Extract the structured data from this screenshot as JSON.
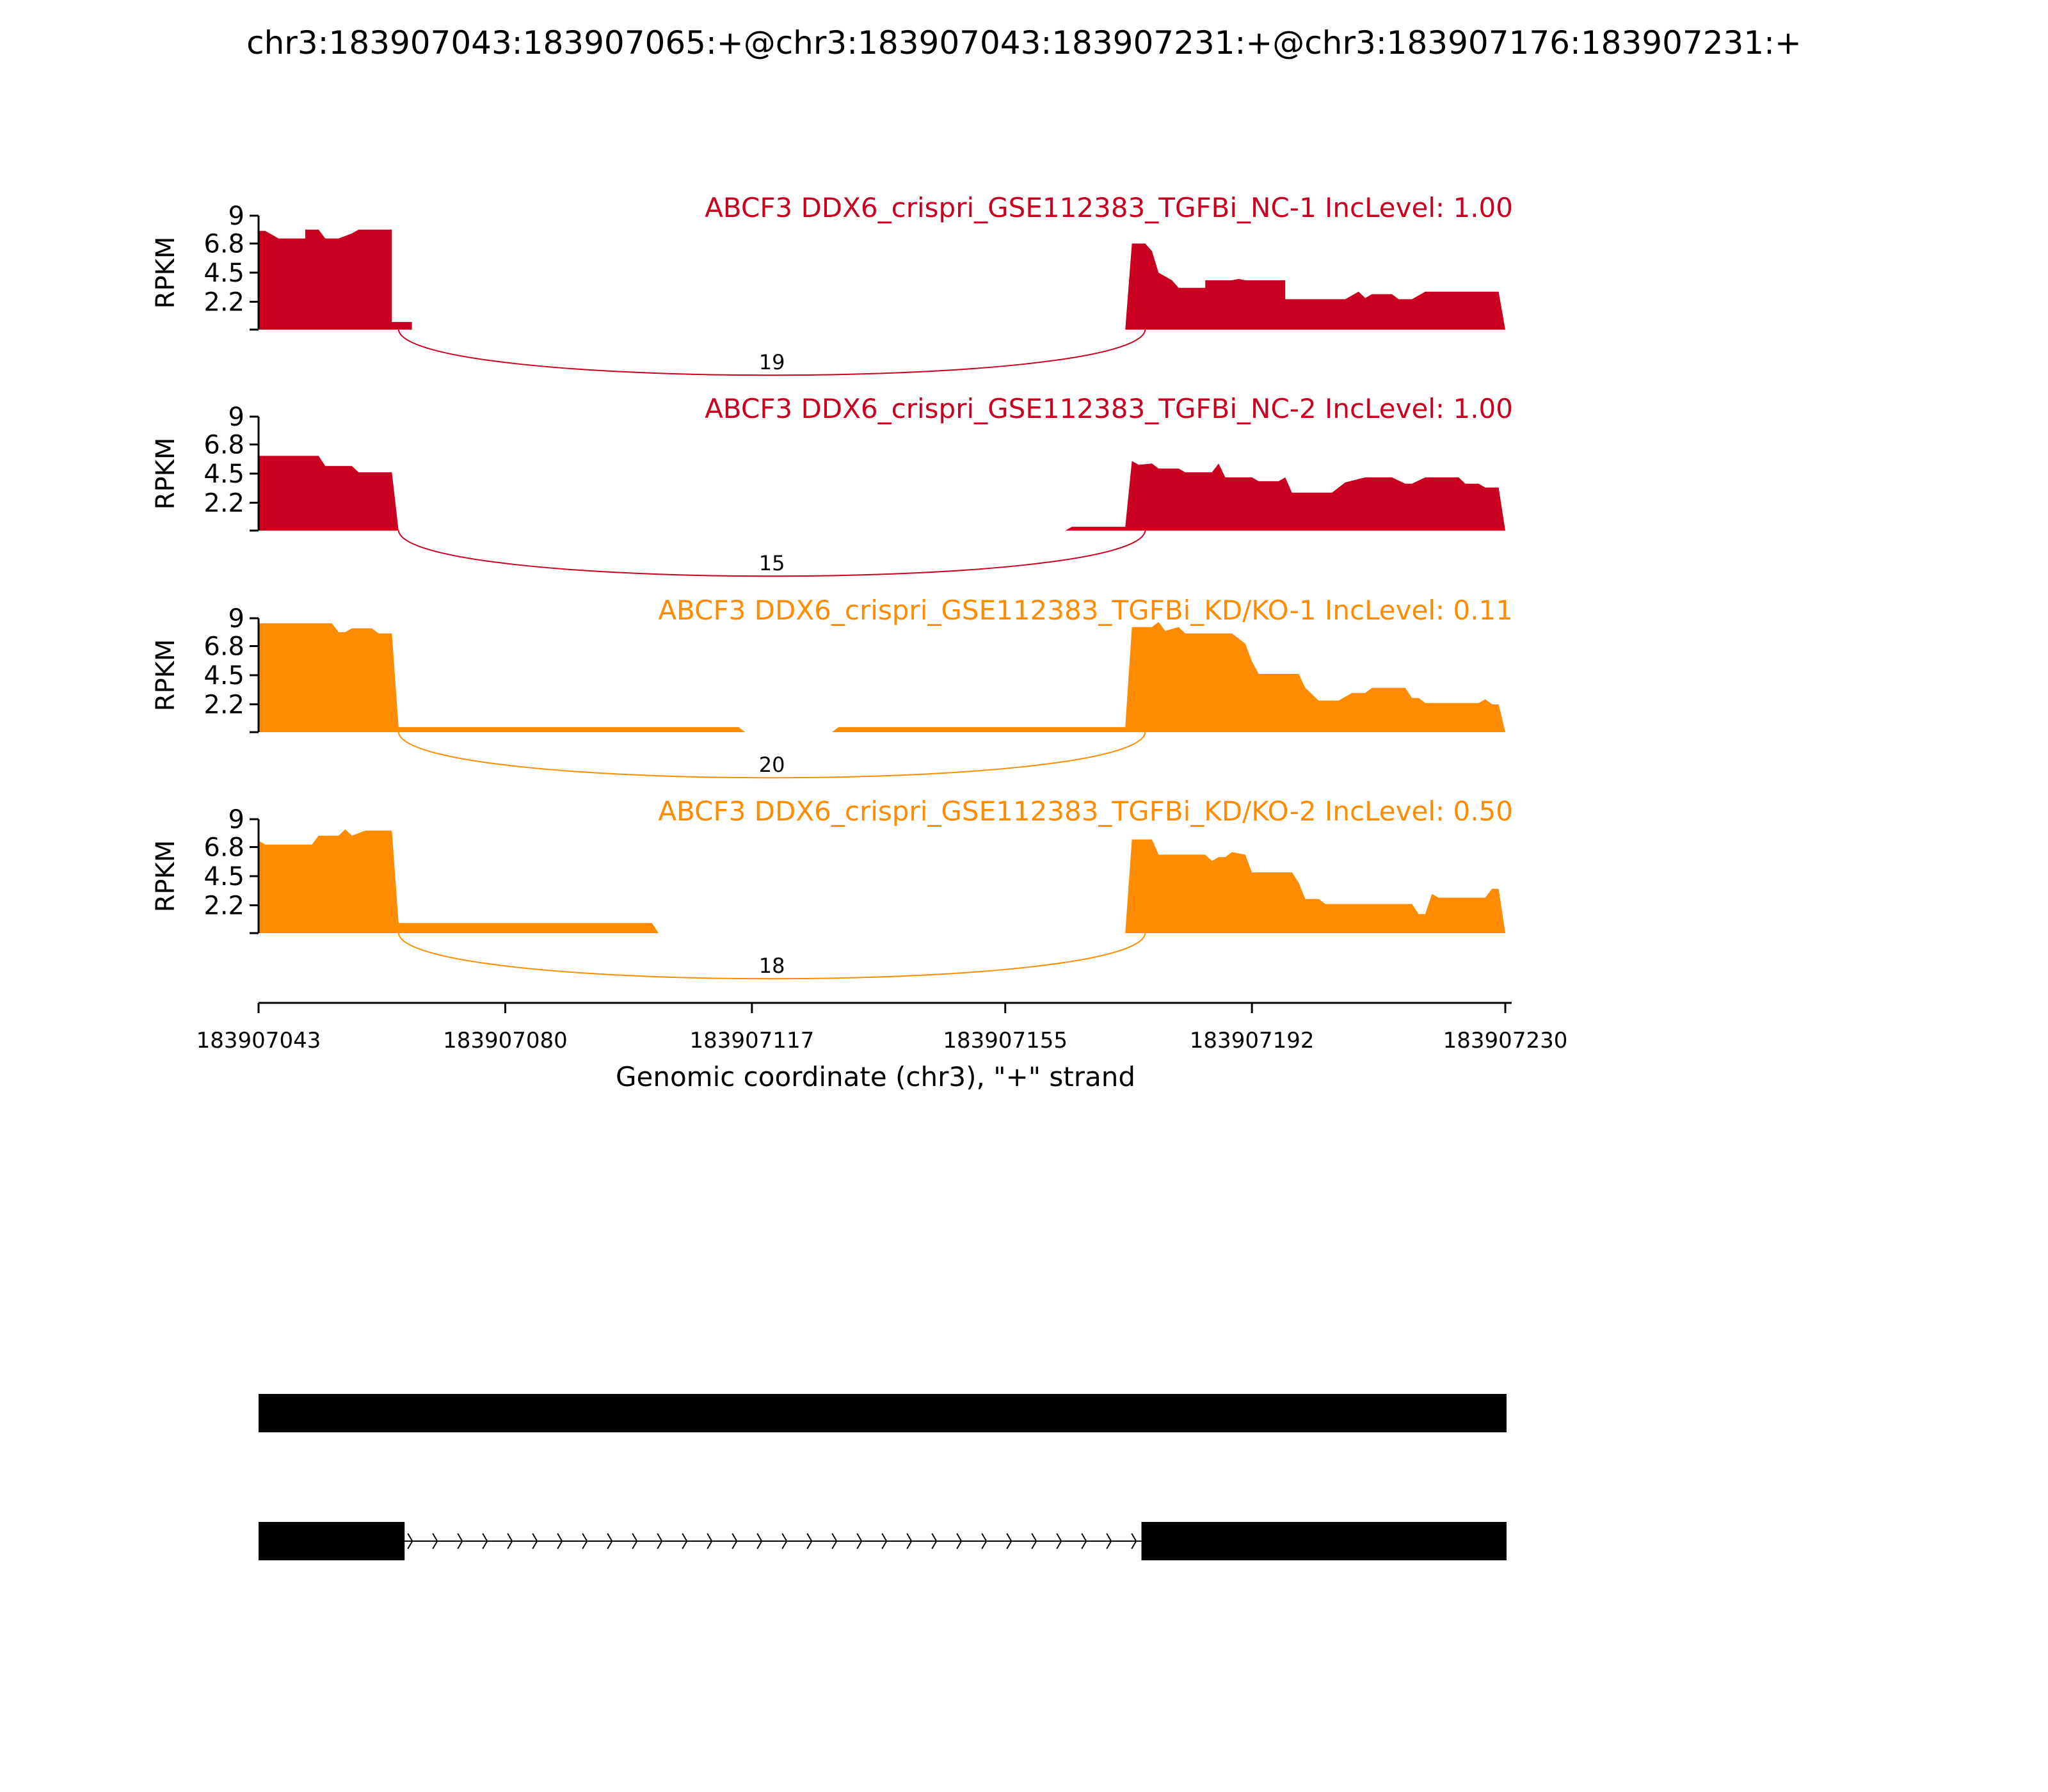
{
  "title": "chr3:183907043:183907065:+@chr3:183907043:183907231:+@chr3:183907176:183907231:+",
  "colors": {
    "nc": "#CA0020",
    "kd": "#FF8C00",
    "axis": "#000000",
    "gene": "#000000"
  },
  "chart_data": {
    "type": "area",
    "chart_kind": "sashimi",
    "xlabel": "Genomic coordinate (chr3), \"+\" strand",
    "xlim": [
      183907043,
      183907230
    ],
    "x_ticks": [
      183907043,
      183907080,
      183907117,
      183907155,
      183907192,
      183907230
    ],
    "x_tick_labels": [
      "183907043",
      "183907080",
      "183907117",
      "183907155",
      "183907192",
      "183907230"
    ],
    "ylabel": "RPKM",
    "ylim": [
      0,
      9
    ],
    "y_ticks": [
      2.2,
      4.5,
      6.8,
      9
    ],
    "y_tick_labels": [
      "2.2",
      "4.5",
      "6.8",
      "9"
    ],
    "tracks": [
      {
        "label": "ABCF3 DDX6_crispri_GSE112383_TGFBi_NC-1 IncLevel: 1.00",
        "color_key": "nc",
        "junctions": [
          {
            "start": 183907064,
            "end": 183907176,
            "count": "19"
          }
        ],
        "coverage": [
          [
            183907043,
            0
          ],
          [
            183907043,
            7.8
          ],
          [
            183907044,
            7.8
          ],
          [
            183907046,
            7.2
          ],
          [
            183907050,
            7.2
          ],
          [
            183907050,
            7.9
          ],
          [
            183907052,
            7.9
          ],
          [
            183907053,
            7.2
          ],
          [
            183907055,
            7.2
          ],
          [
            183907057,
            7.6
          ],
          [
            183907058,
            7.9
          ],
          [
            183907063,
            7.9
          ],
          [
            183907063,
            0.6
          ],
          [
            183907066,
            0.6
          ],
          [
            183907066,
            0
          ],
          [
            183907173,
            0
          ],
          [
            183907174,
            6.8
          ],
          [
            183907176,
            6.8
          ],
          [
            183907177,
            6.2
          ],
          [
            183907178,
            4.5
          ],
          [
            183907180,
            3.9
          ],
          [
            183907181,
            3.3
          ],
          [
            183907185,
            3.3
          ],
          [
            183907185,
            3.9
          ],
          [
            183907189,
            3.9
          ],
          [
            183907190,
            4.0
          ],
          [
            183907191,
            3.9
          ],
          [
            183907197,
            3.9
          ],
          [
            183907197,
            2.4
          ],
          [
            183907206,
            2.4
          ],
          [
            183907208,
            3.0
          ],
          [
            183907209,
            2.5
          ],
          [
            183907210,
            2.8
          ],
          [
            183907213,
            2.8
          ],
          [
            183907214,
            2.4
          ],
          [
            183907216,
            2.4
          ],
          [
            183907218,
            3.0
          ],
          [
            183907223,
            3.0
          ],
          [
            183907229,
            3.0
          ],
          [
            183907230,
            0
          ]
        ]
      },
      {
        "label": "ABCF3 DDX6_crispri_GSE112383_TGFBi_NC-2 IncLevel: 1.00",
        "color_key": "nc",
        "junctions": [
          {
            "start": 183907064,
            "end": 183907176,
            "count": "15"
          }
        ],
        "coverage": [
          [
            183907043,
            0
          ],
          [
            183907043,
            5.9
          ],
          [
            183907052,
            5.9
          ],
          [
            183907053,
            5.1
          ],
          [
            183907057,
            5.1
          ],
          [
            183907058,
            4.6
          ],
          [
            183907063,
            4.6
          ],
          [
            183907064,
            0
          ],
          [
            183907164,
            0
          ],
          [
            183907165,
            0.3
          ],
          [
            183907173,
            0.3
          ],
          [
            183907174,
            5.5
          ],
          [
            183907175,
            5.2
          ],
          [
            183907177,
            5.3
          ],
          [
            183907178,
            4.9
          ],
          [
            183907181,
            4.9
          ],
          [
            183907182,
            4.6
          ],
          [
            183907186,
            4.6
          ],
          [
            183907187,
            5.3
          ],
          [
            183907188,
            4.2
          ],
          [
            183907192,
            4.2
          ],
          [
            183907193,
            3.9
          ],
          [
            183907196,
            3.9
          ],
          [
            183907197,
            4.2
          ],
          [
            183907198,
            3.0
          ],
          [
            183907204,
            3.0
          ],
          [
            183907206,
            3.8
          ],
          [
            183907209,
            4.2
          ],
          [
            183907213,
            4.2
          ],
          [
            183907215,
            3.7
          ],
          [
            183907216,
            3.7
          ],
          [
            183907218,
            4.2
          ],
          [
            183907223,
            4.2
          ],
          [
            183907224,
            3.7
          ],
          [
            183907226,
            3.7
          ],
          [
            183907227,
            3.4
          ],
          [
            183907229,
            3.4
          ],
          [
            183907230,
            0
          ]
        ]
      },
      {
        "label": "ABCF3 DDX6_crispri_GSE112383_TGFBi_KD/KO-1 IncLevel: 0.11",
        "color_key": "kd",
        "junctions": [
          {
            "start": 183907064,
            "end": 183907176,
            "count": "20"
          }
        ],
        "coverage": [
          [
            183907043,
            0
          ],
          [
            183907043,
            8.6
          ],
          [
            183907054,
            8.6
          ],
          [
            183907055,
            7.9
          ],
          [
            183907056,
            7.9
          ],
          [
            183907057,
            8.2
          ],
          [
            183907060,
            8.2
          ],
          [
            183907061,
            7.8
          ],
          [
            183907063,
            7.8
          ],
          [
            183907064,
            0.4
          ],
          [
            183907115,
            0.4
          ],
          [
            183907116,
            0
          ],
          [
            183907129,
            0
          ],
          [
            183907130,
            0.4
          ],
          [
            183907173,
            0.4
          ],
          [
            183907174,
            8.3
          ],
          [
            183907177,
            8.3
          ],
          [
            183907178,
            8.7
          ],
          [
            183907179,
            8.0
          ],
          [
            183907181,
            8.3
          ],
          [
            183907182,
            7.8
          ],
          [
            183907189,
            7.8
          ],
          [
            183907191,
            7.0
          ],
          [
            183907192,
            5.6
          ],
          [
            183907193,
            4.6
          ],
          [
            183907199,
            4.6
          ],
          [
            183907200,
            3.5
          ],
          [
            183907202,
            2.5
          ],
          [
            183907205,
            2.5
          ],
          [
            183907207,
            3.1
          ],
          [
            183907209,
            3.1
          ],
          [
            183907210,
            3.5
          ],
          [
            183907215,
            3.5
          ],
          [
            183907216,
            2.7
          ],
          [
            183907217,
            2.7
          ],
          [
            183907218,
            2.3
          ],
          [
            183907226,
            2.3
          ],
          [
            183907227,
            2.6
          ],
          [
            183907228,
            2.2
          ],
          [
            183907229,
            2.2
          ],
          [
            183907230,
            0
          ]
        ]
      },
      {
        "label": "ABCF3 DDX6_crispri_GSE112383_TGFBi_KD/KO-2 IncLevel: 0.50",
        "color_key": "kd",
        "junctions": [
          {
            "start": 183907064,
            "end": 183907176,
            "count": "18"
          }
        ],
        "coverage": [
          [
            183907043,
            0
          ],
          [
            183907043,
            7.3
          ],
          [
            183907044,
            7.0
          ],
          [
            183907051,
            7.0
          ],
          [
            183907052,
            7.7
          ],
          [
            183907055,
            7.7
          ],
          [
            183907056,
            8.2
          ],
          [
            183907057,
            7.7
          ],
          [
            183907059,
            8.1
          ],
          [
            183907063,
            8.1
          ],
          [
            183907064,
            0.8
          ],
          [
            183907102,
            0.8
          ],
          [
            183907103,
            0
          ],
          [
            183907173,
            0
          ],
          [
            183907174,
            7.4
          ],
          [
            183907177,
            7.4
          ],
          [
            183907178,
            6.2
          ],
          [
            183907185,
            6.2
          ],
          [
            183907186,
            5.7
          ],
          [
            183907187,
            6.0
          ],
          [
            183907188,
            6.0
          ],
          [
            183907189,
            6.4
          ],
          [
            183907191,
            6.2
          ],
          [
            183907192,
            4.8
          ],
          [
            183907198,
            4.8
          ],
          [
            183907199,
            4.0
          ],
          [
            183907200,
            2.7
          ],
          [
            183907202,
            2.7
          ],
          [
            183907203,
            2.3
          ],
          [
            183907216,
            2.3
          ],
          [
            183907217,
            1.5
          ],
          [
            183907218,
            1.5
          ],
          [
            183907219,
            3.1
          ],
          [
            183907220,
            2.8
          ],
          [
            183907227,
            2.8
          ],
          [
            183907228,
            3.5
          ],
          [
            183907229,
            3.5
          ],
          [
            183907230,
            0
          ]
        ]
      }
    ],
    "gene_model": [
      {
        "exons": [
          [
            183907043,
            183907231
          ]
        ],
        "introns": []
      },
      {
        "exons": [
          [
            183907043,
            183907065
          ],
          [
            183907176,
            183907231
          ]
        ],
        "introns": [
          [
            183907065,
            183907176
          ]
        ]
      }
    ]
  }
}
